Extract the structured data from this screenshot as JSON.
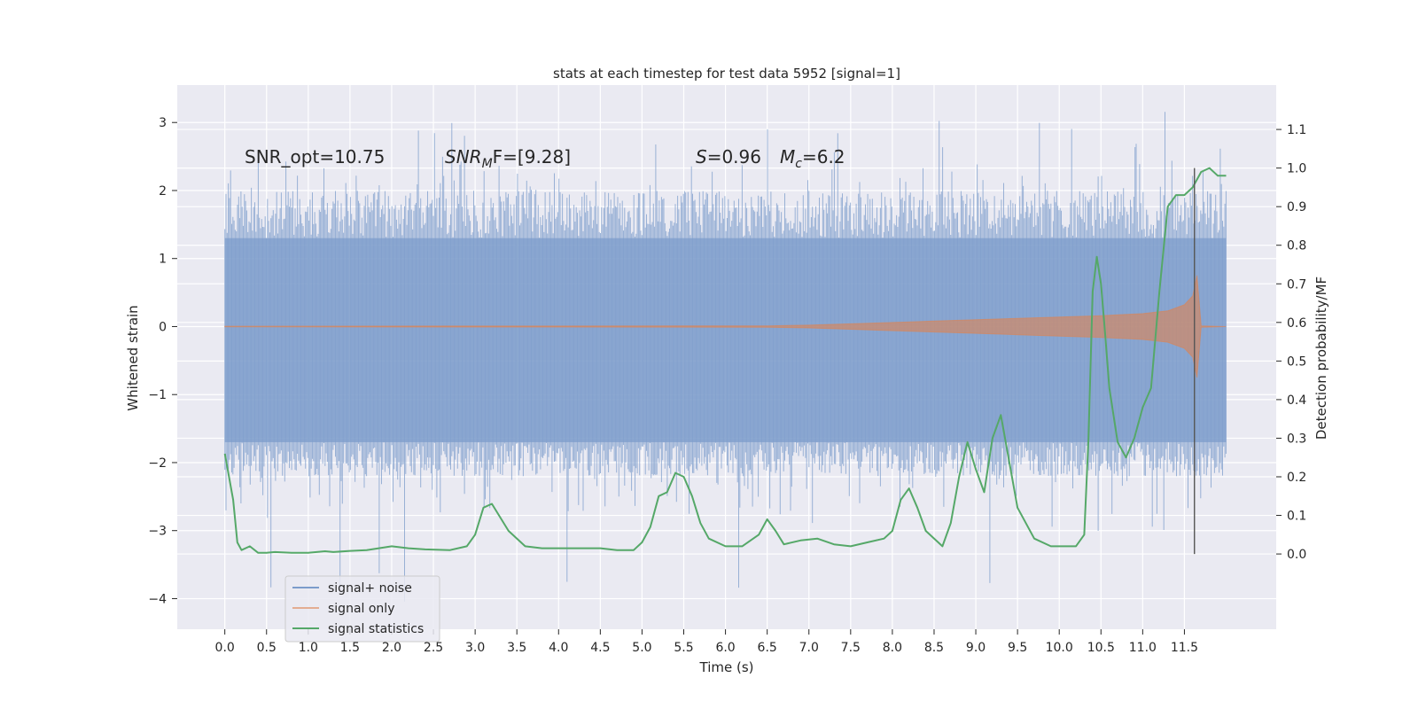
{
  "chart_data": {
    "type": "line",
    "title": "stats at each timestep for test data 5952 [signal=1]",
    "xlabel": "Time (s)",
    "ylabel": "Whitened strain",
    "ylabel_right": "Detection probability/MF",
    "xlim": [
      -0.57,
      12.6
    ],
    "ylim": [
      -4.45,
      3.55
    ],
    "ylim_right": [
      -0.195,
      1.215
    ],
    "x_ticks": [
      "0.0",
      "0.5",
      "1.0",
      "1.5",
      "2.0",
      "2.5",
      "3.0",
      "3.5",
      "4.0",
      "4.5",
      "5.0",
      "5.5",
      "6.0",
      "6.5",
      "7.0",
      "7.5",
      "8.0",
      "8.5",
      "9.0",
      "9.5",
      "10.0",
      "10.5",
      "11.0",
      "11.5"
    ],
    "y_ticks": [
      "3",
      "2",
      "1",
      "0",
      "−1",
      "−2",
      "−3",
      "−4"
    ],
    "y_ticks_right": [
      "1.1",
      "1.0",
      "0.9",
      "0.8",
      "0.7",
      "0.6",
      "0.5",
      "0.4",
      "0.3",
      "0.2",
      "0.1",
      "0.0"
    ],
    "grid": true,
    "legend_position": "lower-left",
    "annotations": {
      "snr_opt": "SNR_opt=10.75",
      "snr_mf_main": "SNR",
      "snr_mf_sub": "M",
      "snr_mf_rest": "F=[9.28]",
      "s_main": "S",
      "s_rest": "=0.96",
      "mc_main": "M",
      "mc_sub": "c",
      "mc_rest": "=6.2"
    },
    "vertical_marker_x": 11.62,
    "colors": {
      "noise": "#7c9ccb",
      "signal": "#dd8452",
      "stats": "#55a868",
      "background": "#eaeaf2",
      "grid": "#ffffff",
      "marker": "#555555"
    },
    "series": [
      {
        "name": "signal+ noise",
        "kind": "noise-band",
        "x_range": [
          0.0,
          12.0
        ],
        "typical_range": [
          -1.7,
          1.3
        ],
        "max_peak": 3.2,
        "min_peak": -4.1
      },
      {
        "name": "signal only",
        "kind": "chirp-envelope",
        "x": [
          0.0,
          6.5,
          7.0,
          7.5,
          8.0,
          8.5,
          9.0,
          9.5,
          10.0,
          10.5,
          11.0,
          11.3,
          11.5,
          11.6,
          11.65,
          11.7,
          12.0
        ],
        "amplitude": [
          0.005,
          0.01,
          0.02,
          0.04,
          0.06,
          0.08,
          0.1,
          0.12,
          0.14,
          0.16,
          0.19,
          0.23,
          0.32,
          0.45,
          0.75,
          0.01,
          0.0
        ]
      },
      {
        "name": "signal statistics",
        "kind": "line",
        "x": [
          0.0,
          0.1,
          0.15,
          0.2,
          0.3,
          0.4,
          0.5,
          0.6,
          0.8,
          1.0,
          1.2,
          1.3,
          1.5,
          1.7,
          2.0,
          2.2,
          2.4,
          2.7,
          2.9,
          3.0,
          3.1,
          3.2,
          3.4,
          3.6,
          3.8,
          4.0,
          4.5,
          4.7,
          4.9,
          5.0,
          5.1,
          5.2,
          5.3,
          5.4,
          5.5,
          5.6,
          5.7,
          5.8,
          6.0,
          6.2,
          6.4,
          6.5,
          6.6,
          6.7,
          6.9,
          7.1,
          7.3,
          7.5,
          7.7,
          7.9,
          8.0,
          8.1,
          8.2,
          8.3,
          8.4,
          8.6,
          8.7,
          8.8,
          8.9,
          9.0,
          9.1,
          9.2,
          9.3,
          9.4,
          9.5,
          9.7,
          9.9,
          10.1,
          10.2,
          10.3,
          10.35,
          10.4,
          10.45,
          10.5,
          10.55,
          10.6,
          10.7,
          10.8,
          10.9,
          11.0,
          11.1,
          11.2,
          11.3,
          11.4,
          11.5,
          11.6,
          11.7,
          11.8,
          11.9,
          12.0
        ],
        "values": [
          0.26,
          0.14,
          0.03,
          0.01,
          0.02,
          0.003,
          0.003,
          0.005,
          0.003,
          0.003,
          0.007,
          0.005,
          0.008,
          0.01,
          0.02,
          0.015,
          0.012,
          0.01,
          0.02,
          0.05,
          0.12,
          0.13,
          0.06,
          0.02,
          0.015,
          0.015,
          0.015,
          0.01,
          0.01,
          0.03,
          0.07,
          0.15,
          0.16,
          0.21,
          0.2,
          0.15,
          0.08,
          0.04,
          0.02,
          0.02,
          0.05,
          0.09,
          0.06,
          0.025,
          0.035,
          0.04,
          0.025,
          0.02,
          0.03,
          0.04,
          0.06,
          0.14,
          0.17,
          0.12,
          0.06,
          0.02,
          0.08,
          0.2,
          0.29,
          0.22,
          0.16,
          0.3,
          0.36,
          0.24,
          0.12,
          0.04,
          0.02,
          0.02,
          0.02,
          0.05,
          0.3,
          0.68,
          0.77,
          0.7,
          0.57,
          0.43,
          0.29,
          0.25,
          0.3,
          0.38,
          0.43,
          0.68,
          0.9,
          0.93,
          0.93,
          0.95,
          0.99,
          1.0,
          0.98,
          0.98
        ]
      }
    ]
  }
}
